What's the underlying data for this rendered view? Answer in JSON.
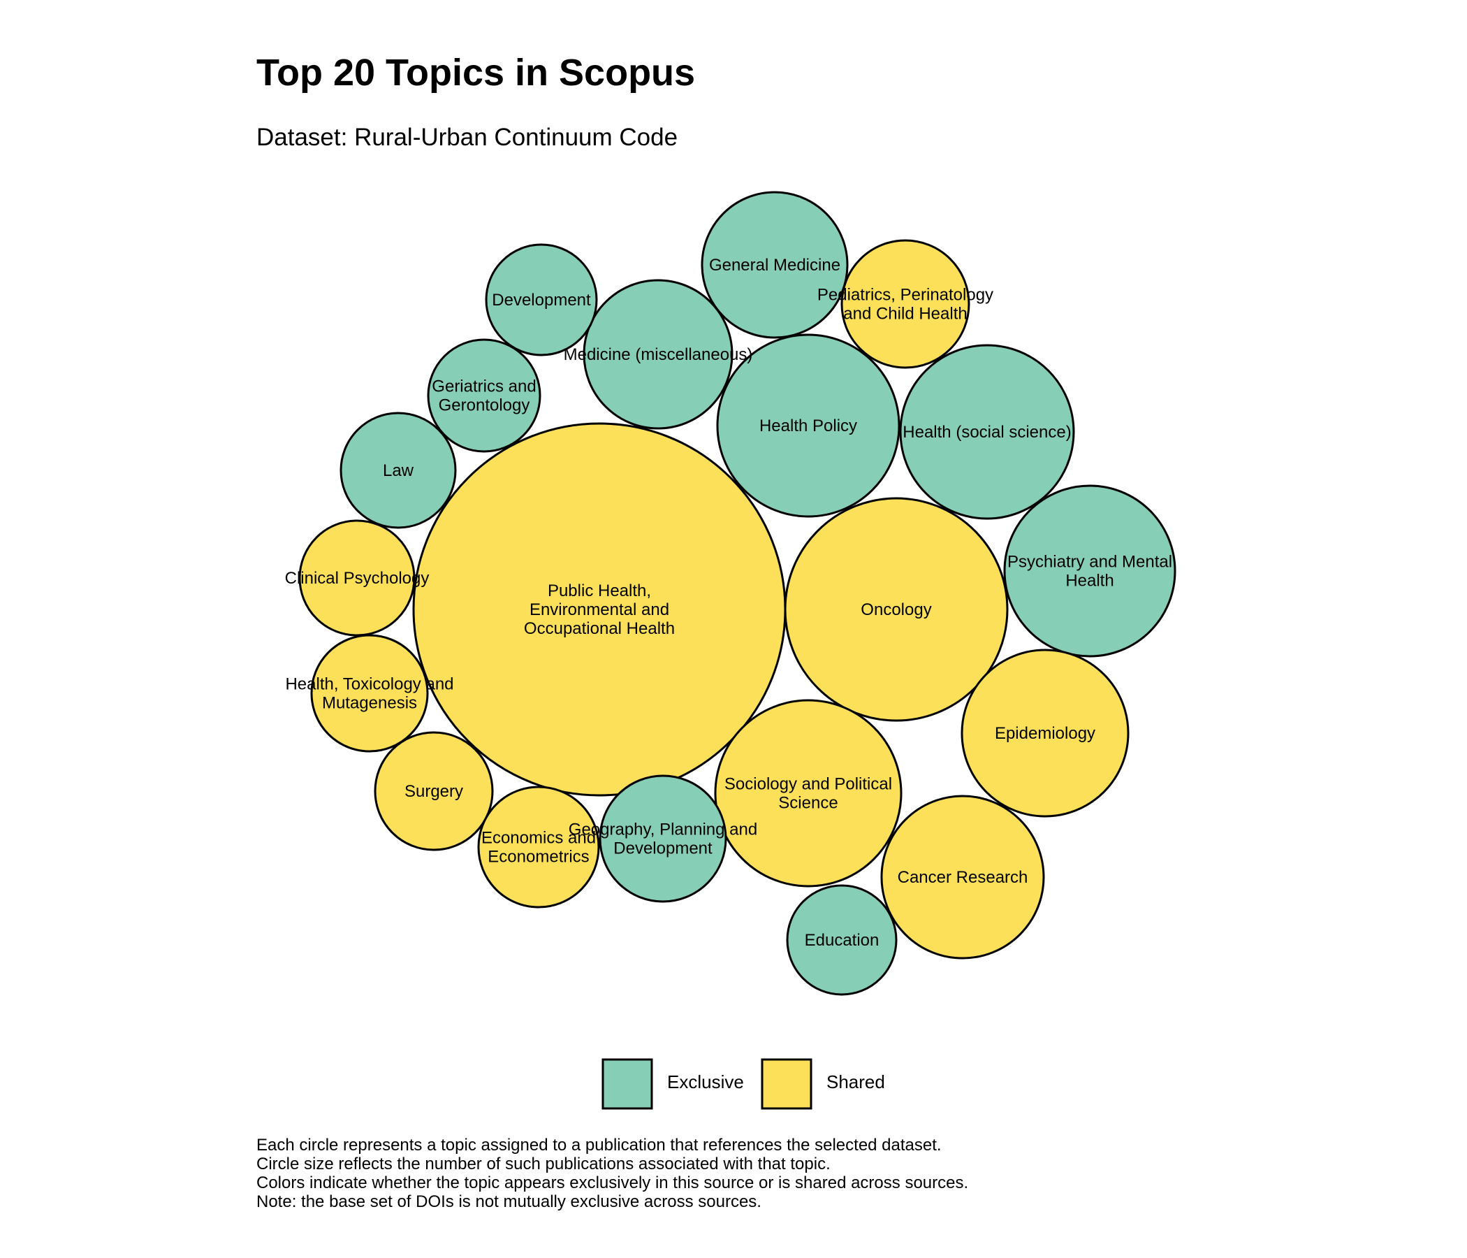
{
  "chart_data": {
    "type": "bubble",
    "title": "Top 20 Topics in Scopus",
    "subtitle": "Dataset: Rural-Urban Continuum Code",
    "legend": {
      "placement": "bottom",
      "entries": [
        {
          "name": "Exclusive",
          "color": "#86CFB6"
        },
        {
          "name": "Shared",
          "color": "#FDE05A"
        }
      ]
    },
    "bubbles": [
      {
        "label": "Public Health, Environmental and Occupational Health",
        "lines": [
          "Public Health,",
          "Environmental and",
          "Occupational Health"
        ],
        "group": "Shared",
        "size": 100
      },
      {
        "label": "Oncology",
        "lines": [
          "Oncology"
        ],
        "group": "Shared",
        "size": 36
      },
      {
        "label": "Health Policy",
        "lines": [
          "Health Policy"
        ],
        "group": "Exclusive",
        "size": 24
      },
      {
        "label": "Health (social science)",
        "lines": [
          "Health (social science)"
        ],
        "group": "Exclusive",
        "size": 22
      },
      {
        "label": "Psychiatry and Mental Health",
        "lines": [
          "Psychiatry and Mental",
          "Health"
        ],
        "group": "Exclusive",
        "size": 21
      },
      {
        "label": "Sociology and Political Science",
        "lines": [
          "Sociology and Political",
          "Science"
        ],
        "group": "Shared",
        "size": 25
      },
      {
        "label": "Epidemiology",
        "lines": [
          "Epidemiology"
        ],
        "group": "Shared",
        "size": 20
      },
      {
        "label": "Cancer Research",
        "lines": [
          "Cancer Research"
        ],
        "group": "Shared",
        "size": 19
      },
      {
        "label": "General Medicine",
        "lines": [
          "General Medicine"
        ],
        "group": "Exclusive",
        "size": 15
      },
      {
        "label": "Medicine (miscellaneous)",
        "lines": [
          "Medicine (miscellaneous)"
        ],
        "group": "Exclusive",
        "size": 16
      },
      {
        "label": "Pediatrics, Perinatology and Child Health",
        "lines": [
          "Pediatrics, Perinatology",
          "and Child Health"
        ],
        "group": "Shared",
        "size": 12
      },
      {
        "label": "Development",
        "lines": [
          "Development"
        ],
        "group": "Exclusive",
        "size": 9
      },
      {
        "label": "Geriatrics and Gerontology",
        "lines": [
          "Geriatrics and",
          "Gerontology"
        ],
        "group": "Exclusive",
        "size": 9
      },
      {
        "label": "Law",
        "lines": [
          "Law"
        ],
        "group": "Exclusive",
        "size": 9.5
      },
      {
        "label": "Clinical Psychology",
        "lines": [
          "Clinical Psychology"
        ],
        "group": "Shared",
        "size": 9.5
      },
      {
        "label": "Health, Toxicology and Mutagenesis",
        "lines": [
          "Health, Toxicology and",
          "Mutagenesis"
        ],
        "group": "Shared",
        "size": 10
      },
      {
        "label": "Surgery",
        "lines": [
          "Surgery"
        ],
        "group": "Shared",
        "size": 10
      },
      {
        "label": "Economics and Econometrics",
        "lines": [
          "Economics and",
          "Econometrics"
        ],
        "group": "Shared",
        "size": 10.5
      },
      {
        "label": "Geography, Planning and Development",
        "lines": [
          "Geography, Planning and",
          "Development"
        ],
        "group": "Exclusive",
        "size": 11.5
      },
      {
        "label": "Education",
        "lines": [
          "Education"
        ],
        "group": "Exclusive",
        "size": 9
      }
    ],
    "caption": [
      "Each circle represents a topic assigned to a publication that references the selected dataset.",
      "Circle size reflects the number of such publications associated with that topic.",
      "Colors indicate whether the topic appears exclusively in this source or is shared across sources.",
      "Note: the base set of DOIs is not mutually exclusive across sources."
    ]
  }
}
